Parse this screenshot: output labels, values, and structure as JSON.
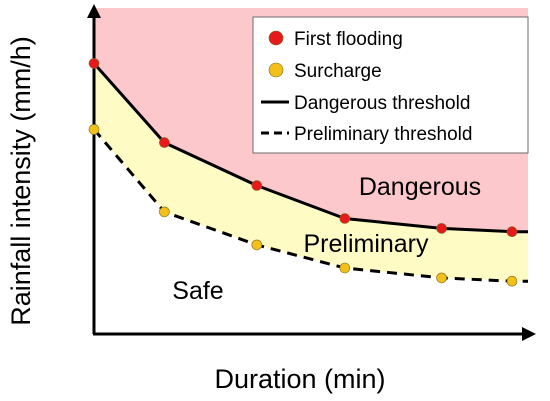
{
  "chart_data": {
    "type": "line",
    "xlabel": "Duration (min)",
    "ylabel": "Rainfall intensity (mm/h)",
    "xlim": [
      0,
      100
    ],
    "ylim": [
      0,
      100
    ],
    "x": [
      0,
      16,
      37,
      57,
      79,
      95
    ],
    "series": [
      {
        "name": "First flooding",
        "marker": "point",
        "color": "#e8191b",
        "values": [
          82,
          58,
          45,
          35,
          32,
          31
        ]
      },
      {
        "name": "Surcharge",
        "marker": "point",
        "color": "#f2c019",
        "values": [
          62,
          37,
          27,
          20,
          17,
          16
        ]
      },
      {
        "name": "Dangerous threshold",
        "marker": "solid-line",
        "color": "#000000",
        "values": [
          82,
          58,
          45,
          35,
          32,
          31
        ]
      },
      {
        "name": "Preliminary threshold",
        "marker": "dashed-line",
        "color": "#000000",
        "values": [
          62,
          37,
          27,
          20,
          17,
          16
        ]
      }
    ],
    "regions": [
      {
        "label": "Dangerous",
        "fill": "#fdc8cb"
      },
      {
        "label": "Preliminary",
        "fill": "#fefbc5"
      },
      {
        "label": "Safe",
        "fill": "#ffffff"
      }
    ],
    "grid": false,
    "legend_position": "top-right"
  }
}
